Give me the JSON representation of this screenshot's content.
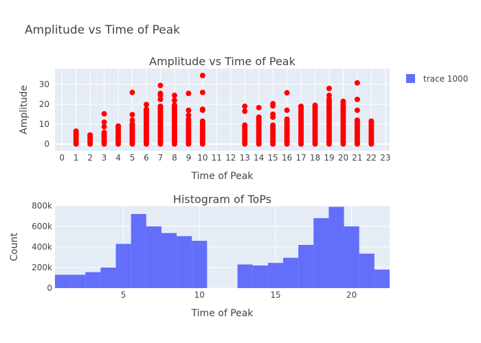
{
  "title": "Amplitude vs Time of Peak",
  "chart_data": [
    {
      "type": "scatter",
      "title": "Amplitude vs Time of Peak",
      "xlabel": "Time of Peak",
      "ylabel": "Amplitude",
      "xlim": [
        -0.5,
        23.3
      ],
      "ylim": [
        -3.5,
        38
      ],
      "x_ticks": [
        0,
        1,
        2,
        3,
        4,
        5,
        6,
        7,
        8,
        9,
        10,
        11,
        12,
        13,
        14,
        15,
        16,
        17,
        18,
        19,
        20,
        21,
        22,
        23
      ],
      "y_ticks": [
        0,
        10,
        20,
        30
      ],
      "grid": true,
      "legend": "top-right",
      "series": [
        {
          "name": "trace 1000",
          "color": "#ff0000",
          "columns": [
            {
              "x": 1,
              "max": 6.5,
              "outliers": []
            },
            {
              "x": 2,
              "max": 4.5,
              "outliers": []
            },
            {
              "x": 3,
              "max": 5.8,
              "outliers": [
                8.7,
                11,
                15.2
              ]
            },
            {
              "x": 4,
              "max": 9,
              "outliers": []
            },
            {
              "x": 5,
              "max": 10,
              "outliers": [
                12,
                14.8,
                26
              ]
            },
            {
              "x": 6,
              "max": 17.5,
              "outliers": [
                19.9
              ]
            },
            {
              "x": 7,
              "max": 19,
              "outliers": [
                22.5,
                24.5,
                25.5,
                29.5
              ]
            },
            {
              "x": 8,
              "max": 19.5,
              "outliers": [
                22,
                24.5
              ]
            },
            {
              "x": 9,
              "max": 12.5,
              "outliers": [
                14.5,
                17,
                25.5
              ]
            },
            {
              "x": 10,
              "max": 11.5,
              "outliers": [
                17,
                17.5,
                26,
                34.5
              ]
            },
            {
              "x": 13,
              "max": 9.5,
              "outliers": [
                16.5,
                19
              ]
            },
            {
              "x": 14,
              "max": 13.5,
              "outliers": [
                18.3
              ]
            },
            {
              "x": 15,
              "max": 9.5,
              "outliers": [
                13.5,
                15,
                19.2,
                20.3
              ]
            },
            {
              "x": 16,
              "max": 12.5,
              "outliers": [
                17,
                25.8
              ]
            },
            {
              "x": 17,
              "max": 19,
              "outliers": []
            },
            {
              "x": 18,
              "max": 19.5,
              "outliers": []
            },
            {
              "x": 19,
              "max": 22.5,
              "outliers": [
                24.5,
                28
              ]
            },
            {
              "x": 20,
              "max": 21.5,
              "outliers": []
            },
            {
              "x": 21,
              "max": 12,
              "outliers": [
                17,
                22.5,
                30.8
              ]
            },
            {
              "x": 22,
              "max": 11.5,
              "outliers": []
            }
          ]
        }
      ]
    },
    {
      "type": "bar",
      "title": "Histogram of ToPs",
      "xlabel": "Time of Peak",
      "ylabel": "Count",
      "xlim": [
        0.5,
        22.5
      ],
      "ylim": [
        0,
        800000
      ],
      "x_ticks": [
        5,
        10,
        15,
        20
      ],
      "y_ticks": [
        0,
        200000,
        400000,
        600000,
        800000
      ],
      "y_tick_labels": [
        "0",
        "200k",
        "400k",
        "600k",
        "800k"
      ],
      "grid": true,
      "color": "#636efa",
      "bin_width": 1,
      "bins": [
        {
          "start": 0.5,
          "count": 130000
        },
        {
          "start": 1.5,
          "count": 130000
        },
        {
          "start": 2.5,
          "count": 155000
        },
        {
          "start": 3.5,
          "count": 200000
        },
        {
          "start": 4.5,
          "count": 430000
        },
        {
          "start": 5.5,
          "count": 720000
        },
        {
          "start": 6.5,
          "count": 600000
        },
        {
          "start": 7.5,
          "count": 535000
        },
        {
          "start": 8.5,
          "count": 505000
        },
        {
          "start": 9.5,
          "count": 460000
        },
        {
          "start": 10.5,
          "count": 0
        },
        {
          "start": 11.5,
          "count": 0
        },
        {
          "start": 12.5,
          "count": 230000
        },
        {
          "start": 13.5,
          "count": 220000
        },
        {
          "start": 14.5,
          "count": 245000
        },
        {
          "start": 15.5,
          "count": 295000
        },
        {
          "start": 16.5,
          "count": 420000
        },
        {
          "start": 17.5,
          "count": 680000
        },
        {
          "start": 18.5,
          "count": 790000
        },
        {
          "start": 19.5,
          "count": 600000
        },
        {
          "start": 20.5,
          "count": 335000
        },
        {
          "start": 21.5,
          "count": 180000
        }
      ]
    }
  ],
  "legend": {
    "label": "trace 1000",
    "color": "#636efa"
  }
}
